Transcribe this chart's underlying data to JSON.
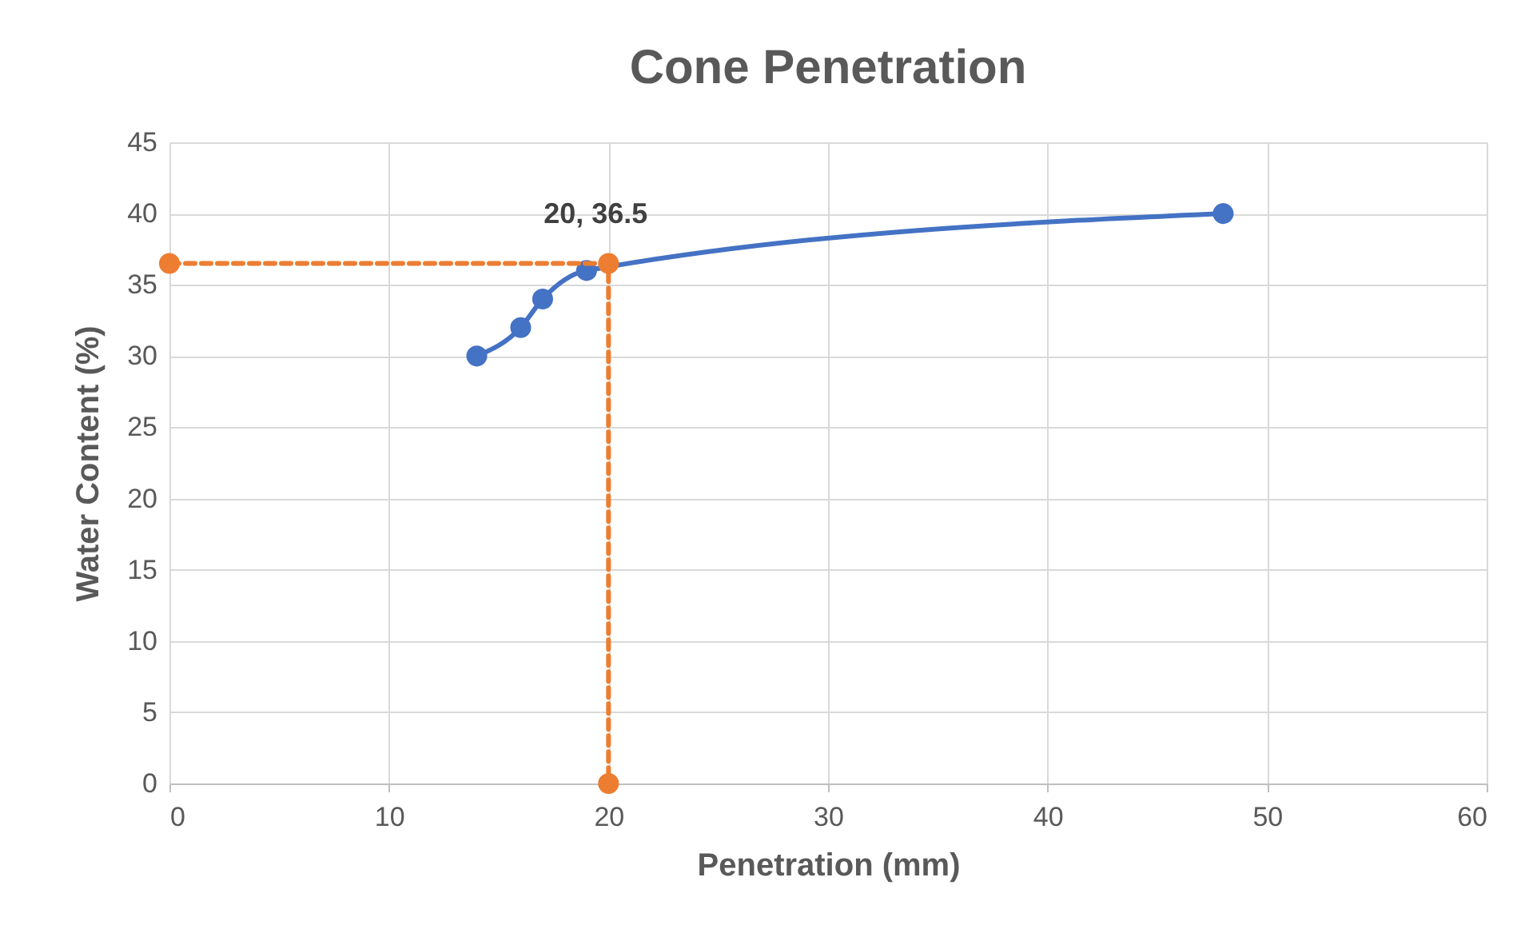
{
  "chart_data": {
    "type": "line",
    "title": "Cone Penetration",
    "xlabel": "Penetration (mm)",
    "ylabel": "Water Content (%)",
    "series": [
      {
        "color": "#4472c4",
        "x": [
          14,
          16,
          17,
          19,
          48
        ],
        "values": [
          30,
          32,
          34,
          36,
          40
        ],
        "line_style": "solid"
      },
      {
        "color": "#ed7d31",
        "x": [
          0,
          20,
          20
        ],
        "values": [
          36.5,
          36.5,
          0
        ],
        "line_style": "dashed"
      }
    ],
    "xlim": [
      0,
      60
    ],
    "xticks": [
      0,
      10,
      20,
      30,
      40,
      50,
      60
    ],
    "ylim": [
      0,
      45
    ],
    "yticks": [
      0,
      5,
      10,
      15,
      20,
      25,
      30,
      35,
      40,
      45
    ],
    "grid": true,
    "marker": "circle",
    "annotations": [
      {
        "text": "20, 36.5",
        "x": 20,
        "y": 36.5
      }
    ]
  }
}
